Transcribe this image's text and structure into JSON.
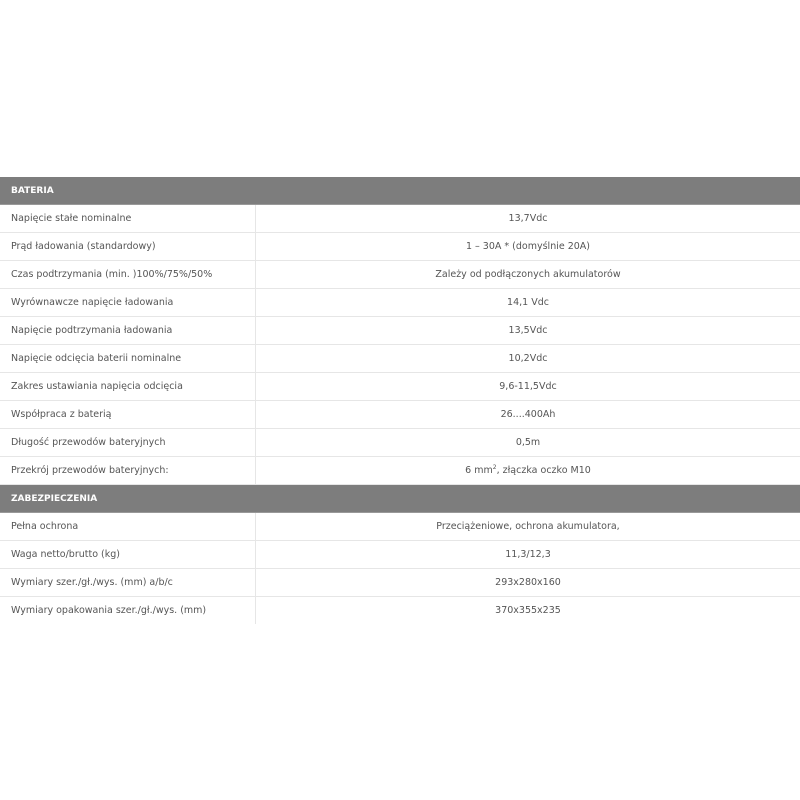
{
  "sections": [
    {
      "title": "BATERIA",
      "rows": [
        {
          "label": "Napięcie stałe nominalne",
          "value": "13,7Vdc"
        },
        {
          "label": "Prąd ładowania (standardowy)",
          "value": "1 – 30A * (domyślnie 20A)"
        },
        {
          "label": "Czas podtrzymania (min. )100%/75%/50%",
          "value": "Zależy od podłączonych akumulatorów"
        },
        {
          "label": "Wyrównawcze napięcie ładowania",
          "value": "14,1 Vdc"
        },
        {
          "label": "Napięcie podtrzymania ładowania",
          "value": "13,5Vdc"
        },
        {
          "label": "Napięcie odcięcia baterii nominalne",
          "value": "10,2Vdc"
        },
        {
          "label": "Zakres ustawiania napięcia odcięcia",
          "value": "9,6-11,5Vdc"
        },
        {
          "label": "Współpraca z baterią",
          "value": "26....400Ah"
        },
        {
          "label": "Długość przewodów bateryjnych",
          "value": "0,5m"
        },
        {
          "label": "Przekrój przewodów bateryjnych:",
          "value_pre": "6 mm",
          "value_sup": "2",
          "value_post": ", złączka oczko M10"
        }
      ]
    },
    {
      "title": "ZABEZPIECZENIA",
      "rows": [
        {
          "label": "Pełna ochrona",
          "value": "Przeciążeniowe, ochrona akumulatora,"
        },
        {
          "label": "Waga netto/brutto (kg)",
          "value": "11,3/12,3"
        },
        {
          "label": "Wymiary szer./gł./wys. (mm) a/b/c",
          "value": "293x280x160"
        },
        {
          "label": "Wymiary opakowania szer./gł./wys. (mm)",
          "value": "370x355x235"
        }
      ]
    }
  ]
}
